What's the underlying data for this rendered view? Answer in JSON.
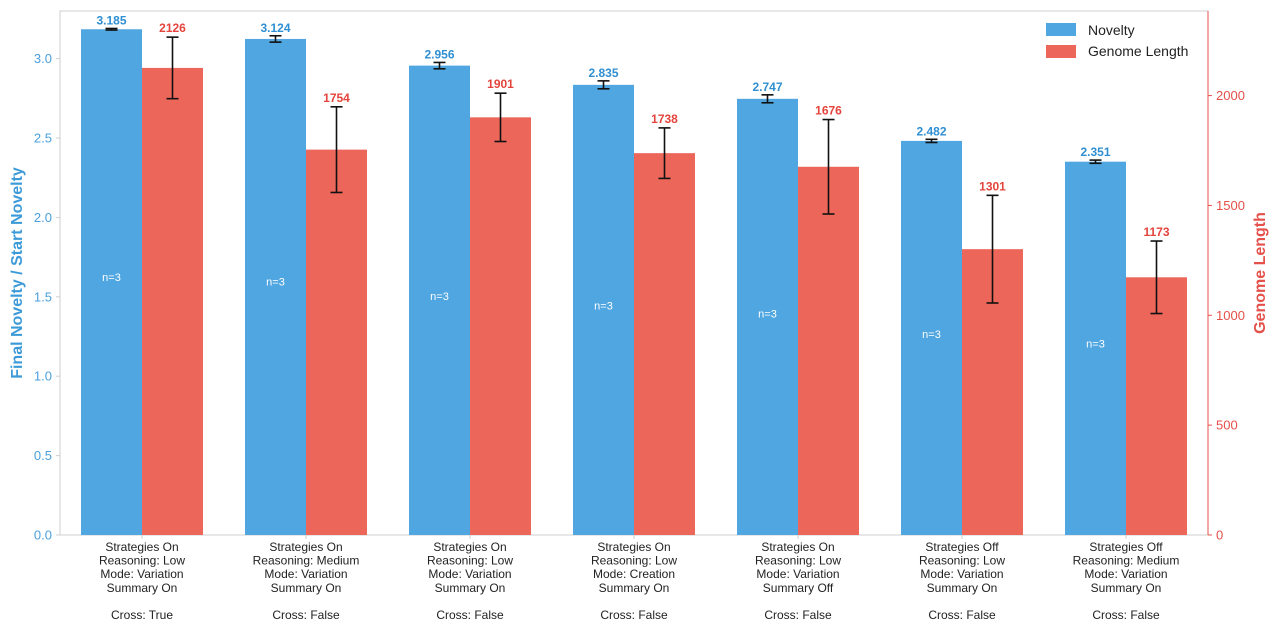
{
  "chart_data": {
    "type": "bar",
    "categories": [
      [
        "Strategies On",
        "Reasoning: Low",
        "Mode: Variation",
        "Summary On",
        "",
        "Cross: True"
      ],
      [
        "Strategies On",
        "Reasoning: Medium",
        "Mode: Variation",
        "Summary On",
        "",
        "Cross: False"
      ],
      [
        "Strategies On",
        "Reasoning: Low",
        "Mode: Variation",
        "Summary On",
        "",
        "Cross: False"
      ],
      [
        "Strategies On",
        "Reasoning: Low",
        "Mode: Creation",
        "Summary On",
        "",
        "Cross: False"
      ],
      [
        "Strategies On",
        "Reasoning: Low",
        "Mode: Variation",
        "Summary Off",
        "",
        "Cross: False"
      ],
      [
        "Strategies Off",
        "Reasoning: Low",
        "Mode: Variation",
        "Summary On",
        "",
        "Cross: False"
      ],
      [
        "Strategies Off",
        "Reasoning: Medium",
        "Mode: Variation",
        "Summary On",
        "",
        "Cross: False"
      ]
    ],
    "series": [
      {
        "name": "Novelty",
        "axis": "left",
        "color": "#4fa6e0",
        "values": [
          3.185,
          3.124,
          2.956,
          2.835,
          2.747,
          2.482,
          2.351
        ],
        "value_labels": [
          "3.185",
          "3.124",
          "2.956",
          "2.835",
          "2.747",
          "2.482",
          "2.351"
        ],
        "error": [
          0.005,
          0.02,
          0.02,
          0.025,
          0.025,
          0.01,
          0.01
        ],
        "count_labels": [
          "n=3",
          "n=3",
          "n=3",
          "n=3",
          "n=3",
          "n=3",
          "n=3"
        ],
        "count_label_y": [
          1.6,
          1.57,
          1.48,
          1.42,
          1.37,
          1.24,
          1.18
        ]
      },
      {
        "name": "Genome Length",
        "axis": "right",
        "color": "#ec665a",
        "values": [
          2126,
          1754,
          1901,
          1738,
          1676,
          1301,
          1173
        ],
        "value_labels": [
          "2126",
          "1754",
          "1901",
          "1738",
          "1676",
          "1301",
          "1173"
        ],
        "error": [
          140,
          195,
          110,
          115,
          215,
          245,
          165
        ]
      }
    ],
    "ylabel_left": "Final Novelty / Start Novelty",
    "ylabel_right": "Genome Length",
    "ylim_left": [
      0,
      3.3
    ],
    "ylim_right": [
      0,
      2385
    ],
    "yticks_left": [
      "0.0",
      "0.5",
      "1.0",
      "1.5",
      "2.0",
      "2.5",
      "3.0"
    ],
    "yticks_right": [
      "0",
      "500",
      "1000",
      "1500",
      "2000"
    ],
    "legend": {
      "position": "top-right",
      "entries": [
        "Novelty",
        "Genome Length"
      ]
    },
    "grid": false
  }
}
